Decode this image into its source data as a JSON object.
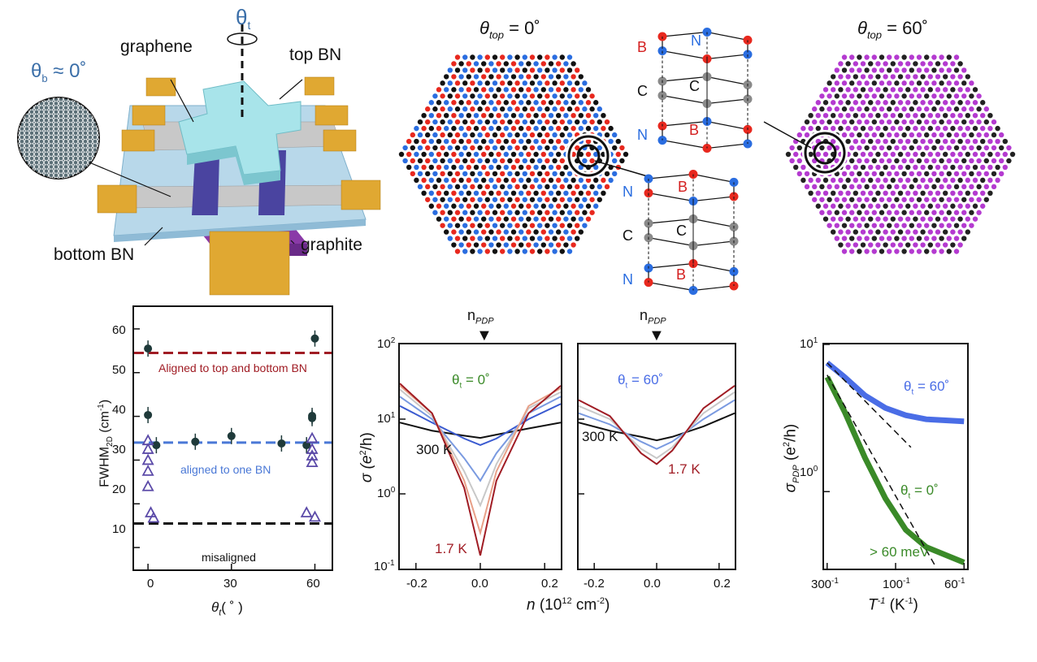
{
  "device": {
    "theta_t": "θ",
    "theta_t_sub": "t",
    "theta_b": "θ",
    "theta_b_sub": "b",
    "theta_b_val": "≈ 0˚",
    "graphene": "graphene",
    "top_bn": "top BN",
    "bottom_bn": "bottom BN",
    "graphite": "graphite"
  },
  "lattice": {
    "left_title_theta": "θ",
    "left_title_sub": "top",
    "left_title_val": "= 0˚",
    "right_title_theta": "θ",
    "right_title_sub": "top",
    "right_title_val": "= 60˚",
    "atoms_upper": [
      "B",
      "N",
      "C",
      "C",
      "N",
      "B"
    ],
    "atoms_lower": [
      "N",
      "B",
      "C",
      "C",
      "B",
      "N"
    ],
    "colors": {
      "boron": "#e8281e",
      "nitrogen": "#2a6de0",
      "carbon": "#8a8a8a",
      "mixed": "#b43ad0"
    }
  },
  "fwhm": {
    "ylabel_main": "FWHM",
    "ylabel_sub": "2D",
    "ylabel_unit": "(cm",
    "ylabel_exp": "-1",
    "ylabel_close": ")",
    "xlabel_theta": "θ",
    "xlabel_sub": "t",
    "xlabel_unit": "( ˚ )",
    "xticks": [
      "0",
      "30",
      "60"
    ],
    "yticks": [
      "10",
      "20",
      "30",
      "40",
      "50",
      "60"
    ],
    "line_top_bottom": "Aligned to top and bottom BN",
    "line_one": "aligned to one BN",
    "line_mis": "misaligned",
    "colors": {
      "top_bottom": "#a01c24",
      "one": "#4a78d6",
      "mis": "#111111",
      "dot": "#1f3a3a",
      "triangle": "#5b4aa8"
    }
  },
  "sigma": {
    "npdp_left": "n",
    "npdp_left_sub": "PDP",
    "npdp_right": "n",
    "npdp_right_sub": "PDP",
    "ylabel": "σ (e",
    "ylabel_exp": "2",
    "ylabel_end": "/h)",
    "xlabel_n": "n",
    "xlabel_rest": "(10",
    "xlabel_exp": "12",
    "xlabel_unit": "cm",
    "xlabel_unit_exp": "-2",
    "xlabel_close": ")",
    "yticks": [
      "10",
      "10",
      "10",
      "10"
    ],
    "ytick_exps": [
      "2",
      "1",
      "0",
      "-1"
    ],
    "xticks": [
      "-0.2",
      "0.0",
      "0.2"
    ],
    "left_theta": "θ",
    "left_theta_sub": "t",
    "left_theta_val": "= 0˚",
    "right_theta": "θ",
    "right_theta_sub": "t",
    "right_theta_val": "= 60˚",
    "temp_high": "300 K",
    "temp_low": "1.7 K",
    "temp_high_right": "300 K",
    "temp_low_right": "1.7 K"
  },
  "pdp": {
    "ylabel_sigma": "σ",
    "ylabel_sub": "PDP",
    "ylabel_rest": "(e",
    "ylabel_exp": "2",
    "ylabel_end": "/h)",
    "xlabel_T": "T",
    "xlabel_exp": "-1",
    "xlabel_unit": "(K",
    "xlabel_unit_exp": "-1",
    "xlabel_close": ")",
    "yticks": [
      "10",
      "10"
    ],
    "ytick_exps": [
      "1",
      "0"
    ],
    "xticks": [
      "300",
      "100",
      "60"
    ],
    "xtick_exp": "-1",
    "series_60": "θ",
    "series_60_sub": "t",
    "series_60_val": "= 60˚",
    "series_0": "θ",
    "series_0_sub": "t",
    "series_0_val": "= 0˚",
    "gap": "> 60 meV",
    "colors": {
      "s60": "#4a6de6",
      "s0": "#3a8a28"
    }
  },
  "chart_data": [
    {
      "type": "scatter",
      "xlabel": "θt (˚)",
      "ylabel": "FWHM2D (cm-1)",
      "xlim": [
        -5,
        66
      ],
      "ylim": [
        5,
        65
      ],
      "series": [
        {
          "x": [
            0,
            60,
            0,
            3,
            17,
            30,
            48,
            57,
            59,
            59
          ],
          "y": [
            55.5,
            57.8,
            40.3,
            33.4,
            34.2,
            35.5,
            33.8,
            33.4,
            39.6,
            40.1
          ]
        },
        {
          "x": [
            0,
            0,
            0,
            0,
            0,
            1,
            2,
            57,
            59,
            59,
            59,
            59,
            60
          ],
          "y": [
            34.5,
            32.5,
            30,
            27.5,
            24,
            18,
            16.8,
            18,
            32.5,
            29.5,
            35,
            31,
            17
          ]
        }
      ],
      "hlines": [
        54.5,
        34,
        15.5
      ]
    },
    {
      "type": "line",
      "xlabel": "n (10^12 cm-2)",
      "ylabel": "σ (e2/h)",
      "xlim": [
        -0.25,
        0.25
      ],
      "ylim": [
        0.1,
        100
      ],
      "yscale": "log",
      "series": [
        {
          "x": [
            -0.25,
            -0.15,
            -0.05,
            0,
            0.05,
            0.15,
            0.25
          ],
          "y": [
            9,
            7,
            6,
            5.6,
            6.2,
            7.5,
            9
          ]
        },
        {
          "x": [
            -0.25,
            -0.15,
            -0.05,
            0,
            0.05,
            0.15,
            0.25
          ],
          "y": [
            15,
            9,
            5.5,
            4.5,
            5.5,
            10,
            16
          ]
        },
        {
          "x": [
            -0.25,
            -0.15,
            -0.05,
            0,
            0.05,
            0.15,
            0.25
          ],
          "y": [
            20,
            10,
            3,
            1.5,
            3.5,
            12,
            20
          ]
        },
        {
          "x": [
            -0.25,
            -0.15,
            -0.05,
            0,
            0.05,
            0.15,
            0.25
          ],
          "y": [
            25,
            11,
            2,
            0.7,
            2.5,
            14,
            23
          ]
        },
        {
          "x": [
            -0.25,
            -0.15,
            -0.05,
            0,
            0.05,
            0.15,
            0.25
          ],
          "y": [
            28,
            12,
            1.5,
            0.3,
            2,
            15,
            26
          ]
        },
        {
          "x": [
            -0.25,
            -0.15,
            -0.05,
            0,
            0.05,
            0.15,
            0.25
          ],
          "y": [
            30,
            12,
            1.2,
            0.15,
            1.5,
            12,
            28
          ]
        }
      ]
    },
    {
      "type": "line",
      "xlabel": "n (10^12 cm-2)",
      "ylabel": "σ (e2/h)",
      "xlim": [
        -0.25,
        0.25
      ],
      "ylim": [
        0.1,
        100
      ],
      "yscale": "log",
      "series": [
        {
          "x": [
            -0.25,
            -0.15,
            -0.05,
            0,
            0.05,
            0.15,
            0.25
          ],
          "y": [
            9,
            7,
            5.8,
            5.2,
            5.8,
            8,
            12
          ]
        },
        {
          "x": [
            -0.25,
            -0.15,
            -0.05,
            0,
            0.05,
            0.15,
            0.25
          ],
          "y": [
            12,
            8.5,
            5,
            4,
            5,
            10,
            18
          ]
        },
        {
          "x": [
            -0.25,
            -0.15,
            -0.05,
            0,
            0.05,
            0.15,
            0.25
          ],
          "y": [
            15,
            10,
            4,
            3,
            4.2,
            12,
            23
          ]
        },
        {
          "x": [
            -0.25,
            -0.15,
            -0.05,
            0,
            0.05,
            0.15,
            0.25
          ],
          "y": [
            18,
            11,
            3.5,
            2.5,
            3.8,
            14,
            28
          ]
        }
      ]
    },
    {
      "type": "line",
      "xlabel": "T-1 (K-1)",
      "ylabel": "σPDP (e2/h)",
      "xlim": [
        0.003,
        0.017
      ],
      "ylim": [
        0.3,
        10
      ],
      "yscale": "log",
      "series": [
        {
          "name": "θt = 60˚",
          "x": [
            0.0033,
            0.005,
            0.007,
            0.009,
            0.011,
            0.013,
            0.0167
          ],
          "y": [
            7.5,
            6,
            4.5,
            3.7,
            3.3,
            3.1,
            3.0
          ]
        },
        {
          "name": "θt = 0˚",
          "x": [
            0.0033,
            0.005,
            0.007,
            0.009,
            0.011,
            0.013,
            0.0167
          ],
          "y": [
            6,
            3.5,
            1.7,
            0.9,
            0.55,
            0.42,
            0.33
          ]
        }
      ]
    }
  ]
}
